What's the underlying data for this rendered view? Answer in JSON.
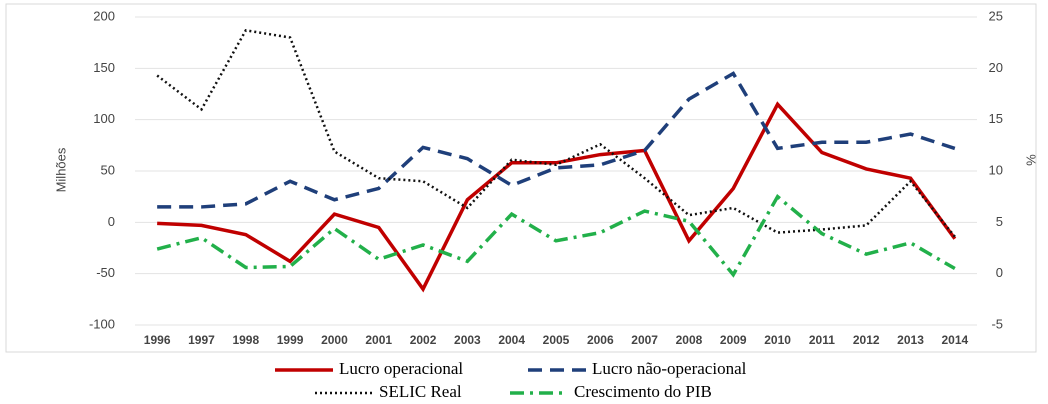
{
  "chart_data": {
    "type": "line",
    "ylabel": "Milhões",
    "y2label": "%",
    "categories": [
      "1996",
      "1997",
      "1998",
      "1999",
      "2000",
      "2001",
      "2002",
      "2003",
      "2004",
      "2005",
      "2006",
      "2007",
      "2008",
      "2009",
      "2010",
      "2011",
      "2012",
      "2013",
      "2014"
    ],
    "ylim": [
      -100,
      200
    ],
    "yticks": [
      -100,
      -50,
      0,
      50,
      100,
      150,
      200
    ],
    "y2lim": [
      -5,
      25
    ],
    "y2ticks": [
      -5,
      0,
      5,
      10,
      15,
      20,
      25
    ],
    "series": [
      {
        "name": "Lucro operacional",
        "color": "#c00000",
        "style": "solid",
        "values": [
          -1,
          -3,
          -12,
          -38,
          8,
          -5,
          -65,
          22,
          58,
          58,
          66,
          70,
          -18,
          33,
          115,
          68,
          52,
          43,
          -16
        ]
      },
      {
        "name": "Lucro não-operacional",
        "color": "#1f3f7a",
        "style": "dashed",
        "values": [
          15,
          15,
          18,
          40,
          22,
          33,
          73,
          62,
          36,
          53,
          56,
          70,
          120,
          145,
          72,
          78,
          78,
          86,
          72
        ]
      },
      {
        "name": "SELIC Real",
        "color": "#111111",
        "style": "dotted",
        "axis": "y2",
        "values": [
          19.3,
          16,
          23.7,
          23,
          11.9,
          9.3,
          9,
          6.4,
          11.1,
          10.6,
          12.6,
          9.3,
          5.7,
          6.4,
          4,
          4.3,
          4.7,
          9,
          3.6
        ]
      },
      {
        "name": "Crescimento do PIB",
        "color": "#22b04a",
        "style": "dashdot",
        "axis": "y2",
        "values": [
          2.4,
          3.5,
          0.6,
          0.7,
          4.4,
          1.4,
          2.8,
          1.2,
          5.8,
          3.2,
          4,
          6.1,
          5.1,
          -0.1,
          7.5,
          3.9,
          1.9,
          3,
          0.5
        ]
      }
    ]
  }
}
